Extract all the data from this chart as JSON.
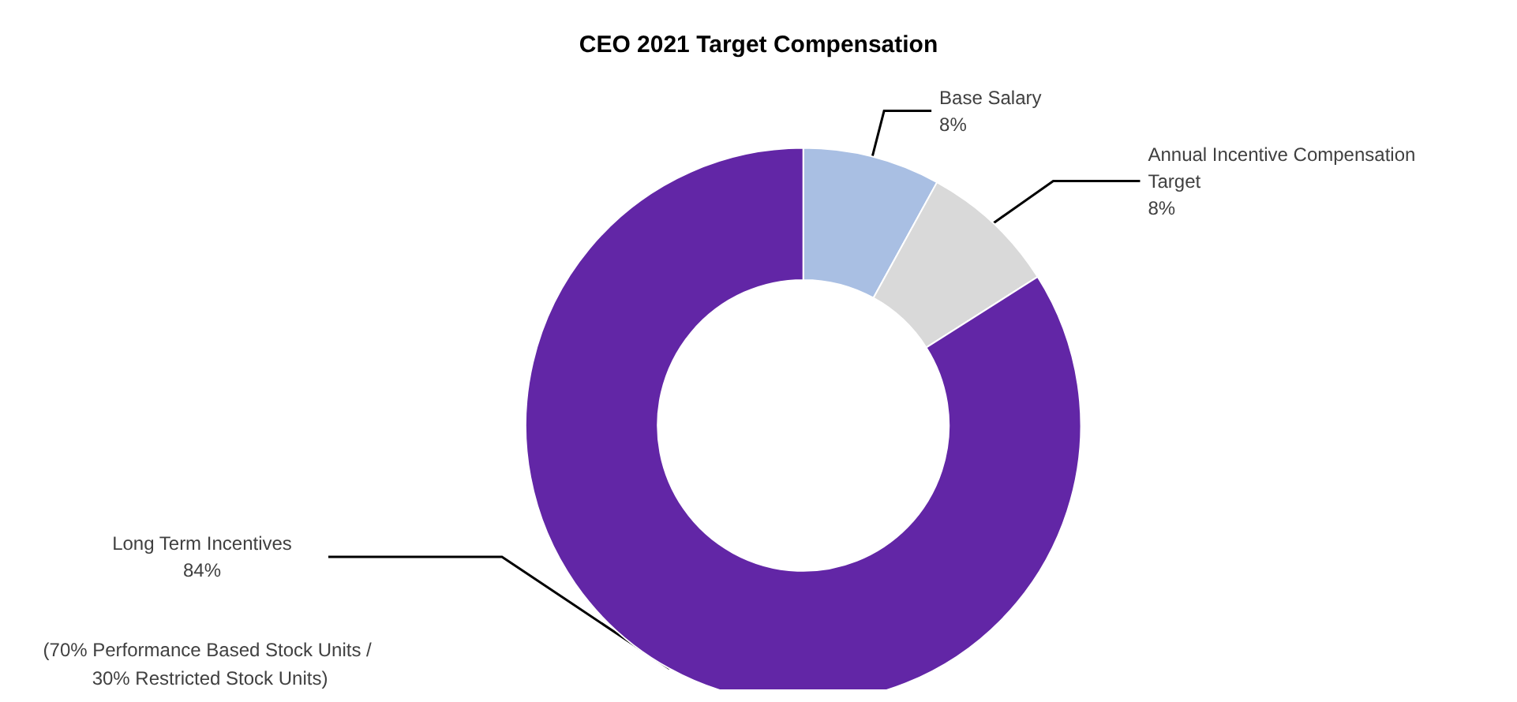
{
  "chart_data": {
    "type": "donut",
    "title": "CEO 2021 Target Compensation",
    "categories": [
      "Base Salary",
      "Annual Incentive Compensation Target",
      "Long Term Incentives"
    ],
    "values": [
      8,
      8,
      84
    ],
    "colors": [
      "#a9bfe3",
      "#d9d9d9",
      "#6226a6"
    ],
    "value_labels": [
      "8%",
      "8%",
      "84%"
    ],
    "legend": false,
    "annotations": [
      "(70% Performance Based Stock Units / 30% Restricted Stock Units)"
    ]
  }
}
